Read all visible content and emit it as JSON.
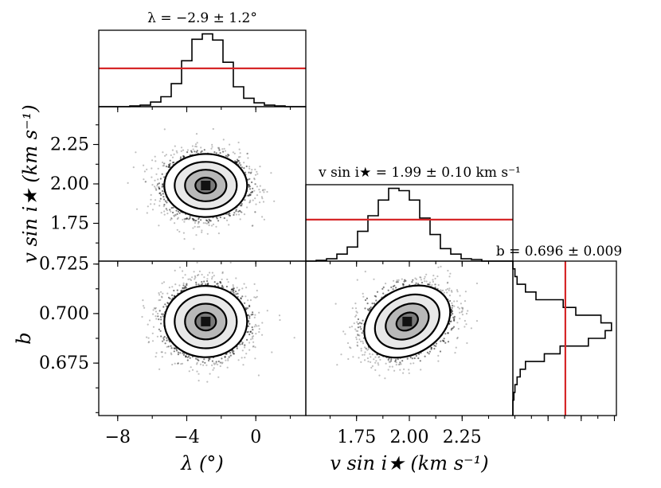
{
  "chart_data": {
    "type": "corner",
    "titles": {
      "lambda": "λ = −2.9 ± 1.2°",
      "vsini": "v sin i★ = 1.99 ± 0.10 km s⁻¹",
      "b": "b = 0.696 ± 0.009"
    },
    "axis_labels": {
      "x_lambda": "λ (°)",
      "x_vsini": "v sin i★ (km s⁻¹)",
      "y_vsini": "v sin i★ (km s⁻¹)",
      "y_b": "b"
    },
    "parameters": [
      {
        "key": "lambda",
        "median": -2.9,
        "sigma": 1.2,
        "reference": -2.9
      },
      {
        "key": "vsini",
        "median": 1.99,
        "sigma": 0.1,
        "reference": 1.99
      },
      {
        "key": "b",
        "median": 0.696,
        "sigma": 0.009,
        "reference": 0.696
      }
    ],
    "ranges": {
      "lambda": [
        -9.1,
        2.9
      ],
      "vsini": [
        1.51,
        2.49
      ],
      "b": [
        0.6485,
        0.7265
      ]
    },
    "ticks": {
      "lambda": [
        {
          "v": -8,
          "label": "−8"
        },
        {
          "v": -4,
          "label": "−4"
        },
        {
          "v": 0,
          "label": "0"
        }
      ],
      "vsini": [
        {
          "v": 1.75,
          "label": "1.75"
        },
        {
          "v": 2.0,
          "label": "2.00"
        },
        {
          "v": 2.25,
          "label": "2.25"
        }
      ],
      "b": [
        {
          "v": 0.675,
          "label": "0.675"
        },
        {
          "v": 0.7,
          "label": "0.700"
        },
        {
          "v": 0.725,
          "label": "0.725"
        }
      ]
    },
    "histograms": {
      "lambda": {
        "edges": [
          -9.1,
          -8.5,
          -7.9,
          -7.3,
          -6.7,
          -6.1,
          -5.5,
          -4.9,
          -4.3,
          -3.7,
          -3.1,
          -2.5,
          -1.9,
          -1.3,
          -0.7,
          -0.1,
          0.5,
          1.1,
          1.7,
          2.3,
          2.9
        ],
        "counts": [
          0,
          0,
          0,
          1,
          2,
          6,
          13,
          30,
          60,
          88,
          95,
          87,
          58,
          26,
          11,
          5,
          2,
          1,
          0,
          0
        ],
        "ref_level": 50
      },
      "vsini": {
        "edges": [
          1.51,
          1.559,
          1.608,
          1.657,
          1.706,
          1.755,
          1.804,
          1.853,
          1.902,
          1.951,
          2.0,
          2.049,
          2.098,
          2.147,
          2.196,
          2.245,
          2.294,
          2.343,
          2.392,
          2.441,
          2.49
        ],
        "counts": [
          0,
          1,
          3,
          9,
          18,
          38,
          58,
          78,
          93,
          90,
          78,
          55,
          34,
          16,
          9,
          3,
          2,
          0,
          0,
          0
        ],
        "ref_level": 53
      },
      "b": {
        "edges": [
          0.6485,
          0.6524,
          0.6563,
          0.6602,
          0.6641,
          0.668,
          0.6719,
          0.6758,
          0.6797,
          0.6836,
          0.6875,
          0.6914,
          0.6953,
          0.6992,
          0.7031,
          0.707,
          0.7109,
          0.7148,
          0.7187,
          0.7226,
          0.7265
        ],
        "counts": [
          0,
          0,
          1,
          2,
          4,
          7,
          12,
          30,
          45,
          72,
          88,
          94,
          84,
          60,
          48,
          22,
          12,
          4,
          2,
          0
        ],
        "ref_level": 50
      }
    },
    "density_panels": [
      {
        "x": "lambda",
        "y": "vsini",
        "cx": -2.9,
        "cy": 1.99,
        "sx": 1.2,
        "sy": 0.1,
        "rho": 0.0
      },
      {
        "x": "lambda",
        "y": "b",
        "cx": -2.9,
        "cy": 0.696,
        "sx": 1.2,
        "sy": 0.009,
        "rho": 0.0
      },
      {
        "x": "vsini",
        "y": "b",
        "cx": 1.99,
        "cy": 0.696,
        "sx": 0.1,
        "sy": 0.009,
        "rho": 0.3
      }
    ],
    "contour_levels_sigma": [
      0.5,
      1.0,
      1.5,
      2.0
    ],
    "colors": {
      "reference": "#d62728",
      "points": "#000000",
      "line": "#000000"
    }
  }
}
